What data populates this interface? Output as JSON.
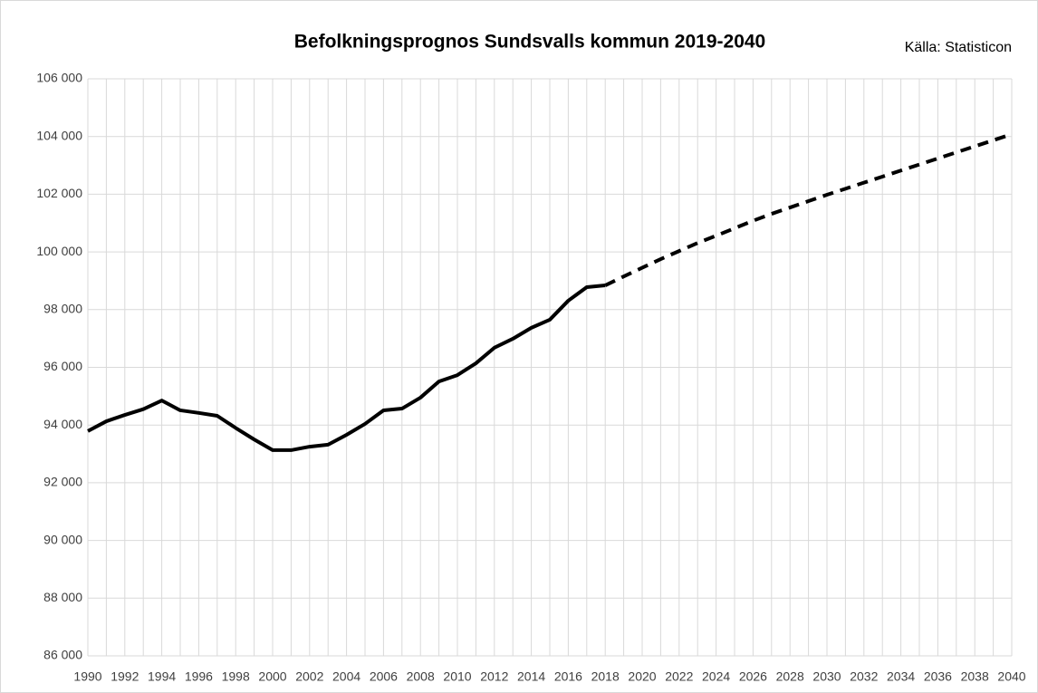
{
  "chart_data": {
    "type": "line",
    "title": "Befolkningsprognos Sundsvalls kommun 2019-2040",
    "annotation": "Källa: Statisticon",
    "categories": [
      "1990",
      null,
      "1992",
      null,
      "1994",
      null,
      "1996",
      null,
      "1998",
      null,
      "2000",
      null,
      "2002",
      null,
      "2004",
      null,
      "2006",
      null,
      "2008",
      null,
      "2010",
      null,
      "2012",
      null,
      "2014",
      null,
      "2016",
      null,
      "2018",
      null,
      "2020",
      null,
      "2022",
      null,
      "2024",
      null,
      "2026",
      null,
      "2028",
      null,
      "2030",
      null,
      "2032",
      null,
      "2034",
      null,
      "2036",
      null,
      "2038",
      null,
      "2040"
    ],
    "series": [
      {
        "color": "#000000",
        "line_style": "solid",
        "values": [
          93790,
          94130,
          94350,
          94550,
          94850,
          94510,
          94420,
          94320,
          93900,
          93500,
          93130,
          93130,
          93250,
          93320,
          93660,
          94040,
          94510,
          94570,
          94950,
          95510,
          95730,
          96140,
          96680,
          96990,
          97370,
          97650,
          98310,
          98780,
          98840,
          null,
          null,
          null,
          null,
          null,
          null,
          null,
          null,
          null,
          null,
          null,
          null,
          null,
          null,
          null,
          null,
          null,
          null,
          null,
          null,
          null,
          null
        ]
      },
      {
        "color": "#000000",
        "line_style": "dashed",
        "values": [
          null,
          null,
          null,
          null,
          null,
          null,
          null,
          null,
          null,
          null,
          null,
          null,
          null,
          null,
          null,
          null,
          null,
          null,
          null,
          null,
          null,
          null,
          null,
          null,
          null,
          null,
          null,
          null,
          98840,
          99150,
          99450,
          99750,
          100030,
          100310,
          100560,
          100820,
          101080,
          101320,
          101540,
          101760,
          101980,
          102190,
          102400,
          102610,
          102820,
          103030,
          103240,
          103450,
          103660,
          103870,
          104080
        ]
      }
    ],
    "ylim": [
      86000,
      106000
    ],
    "yticks": [
      {
        "value": 86000,
        "label": "86 000"
      },
      {
        "value": 88000,
        "label": "88 000"
      },
      {
        "value": 90000,
        "label": "90 000"
      },
      {
        "value": 92000,
        "label": "92 000"
      },
      {
        "value": 94000,
        "label": "94 000"
      },
      {
        "value": 96000,
        "label": "96 000"
      },
      {
        "value": 98000,
        "label": "98 000"
      },
      {
        "value": 100000,
        "label": "100 000"
      },
      {
        "value": 102000,
        "label": "102 000"
      },
      {
        "value": 104000,
        "label": "104 000"
      },
      {
        "value": 106000,
        "label": "106 000"
      }
    ],
    "grid": true
  }
}
